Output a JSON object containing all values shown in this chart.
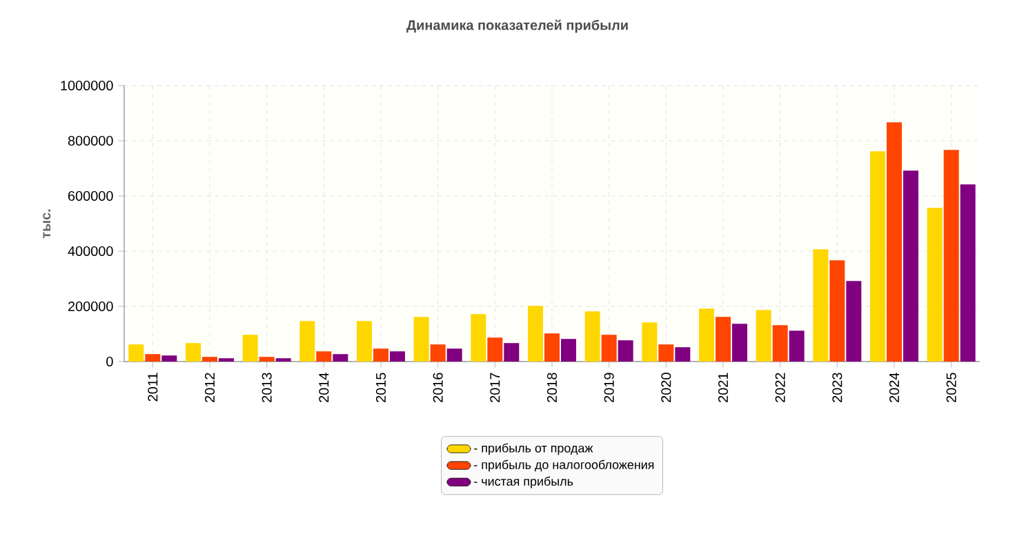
{
  "chart_data": {
    "type": "bar",
    "title": "Динамика показателей прибыли",
    "ylabel": "тыс.",
    "categories": [
      "2011",
      "2012",
      "2013",
      "2014",
      "2015",
      "2016",
      "2017",
      "2018",
      "2019",
      "2020",
      "2021",
      "2022",
      "2023",
      "2024",
      "2025"
    ],
    "series": [
      {
        "name": "- прибыль от продаж",
        "color": "#ffd700",
        "values": [
          62000,
          67000,
          97000,
          147000,
          147000,
          162000,
          172000,
          202000,
          182000,
          142000,
          192000,
          187000,
          407000,
          762000,
          557000
        ]
      },
      {
        "name": "- прибыль до налогообложения",
        "color": "#ff4500",
        "values": [
          27000,
          17000,
          17000,
          37000,
          47000,
          62000,
          87000,
          102000,
          97000,
          62000,
          162000,
          132000,
          367000,
          867000,
          767000
        ]
      },
      {
        "name": "- чистая прибыль",
        "color": "#800080",
        "values": [
          22000,
          12000,
          12000,
          27000,
          37000,
          47000,
          67000,
          82000,
          77000,
          52000,
          137000,
          112000,
          292000,
          692000,
          642000
        ]
      }
    ],
    "ylim": [
      0,
      1000000
    ],
    "yticks": [
      0,
      200000,
      400000,
      600000,
      800000,
      1000000
    ],
    "grid": true,
    "legend": "bottom"
  }
}
